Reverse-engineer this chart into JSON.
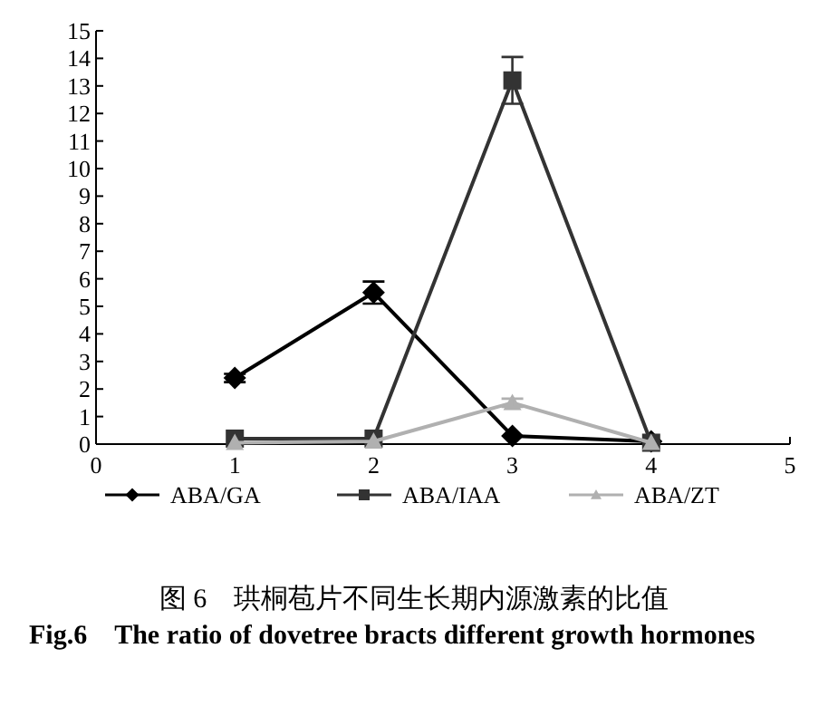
{
  "chart_data": {
    "type": "line",
    "x": [
      1,
      2,
      3,
      4
    ],
    "xlim": [
      0,
      5
    ],
    "xticks": [
      0,
      1,
      2,
      3,
      4,
      5
    ],
    "ylim": [
      0,
      15
    ],
    "yticks": [
      0,
      1,
      2,
      3,
      4,
      5,
      6,
      7,
      8,
      9,
      10,
      11,
      12,
      13,
      14,
      15
    ],
    "grid": false,
    "legend": "bottom",
    "line_style": "solid",
    "series": [
      {
        "name": "ABA/GA",
        "color": "#000000",
        "marker": "diamond",
        "values": [
          2.4,
          5.5,
          0.3,
          0.1
        ],
        "errors": [
          0.15,
          0.4,
          null,
          null
        ]
      },
      {
        "name": "ABA/IAA",
        "color": "#333333",
        "marker": "square",
        "values": [
          0.2,
          0.2,
          13.2,
          0.05
        ],
        "errors": [
          null,
          null,
          0.85,
          null
        ]
      },
      {
        "name": "ABA/ZT",
        "color": "#b0b0b0",
        "marker": "triangle",
        "values": [
          0.05,
          0.1,
          1.5,
          0.05
        ],
        "errors": [
          null,
          null,
          0.15,
          null
        ]
      }
    ],
    "annotations": [
      "图 6　珙桐苞片不同生长期内源激素的比值",
      "Fig.6　The ratio of dovetree bracts different growth hormones"
    ]
  }
}
